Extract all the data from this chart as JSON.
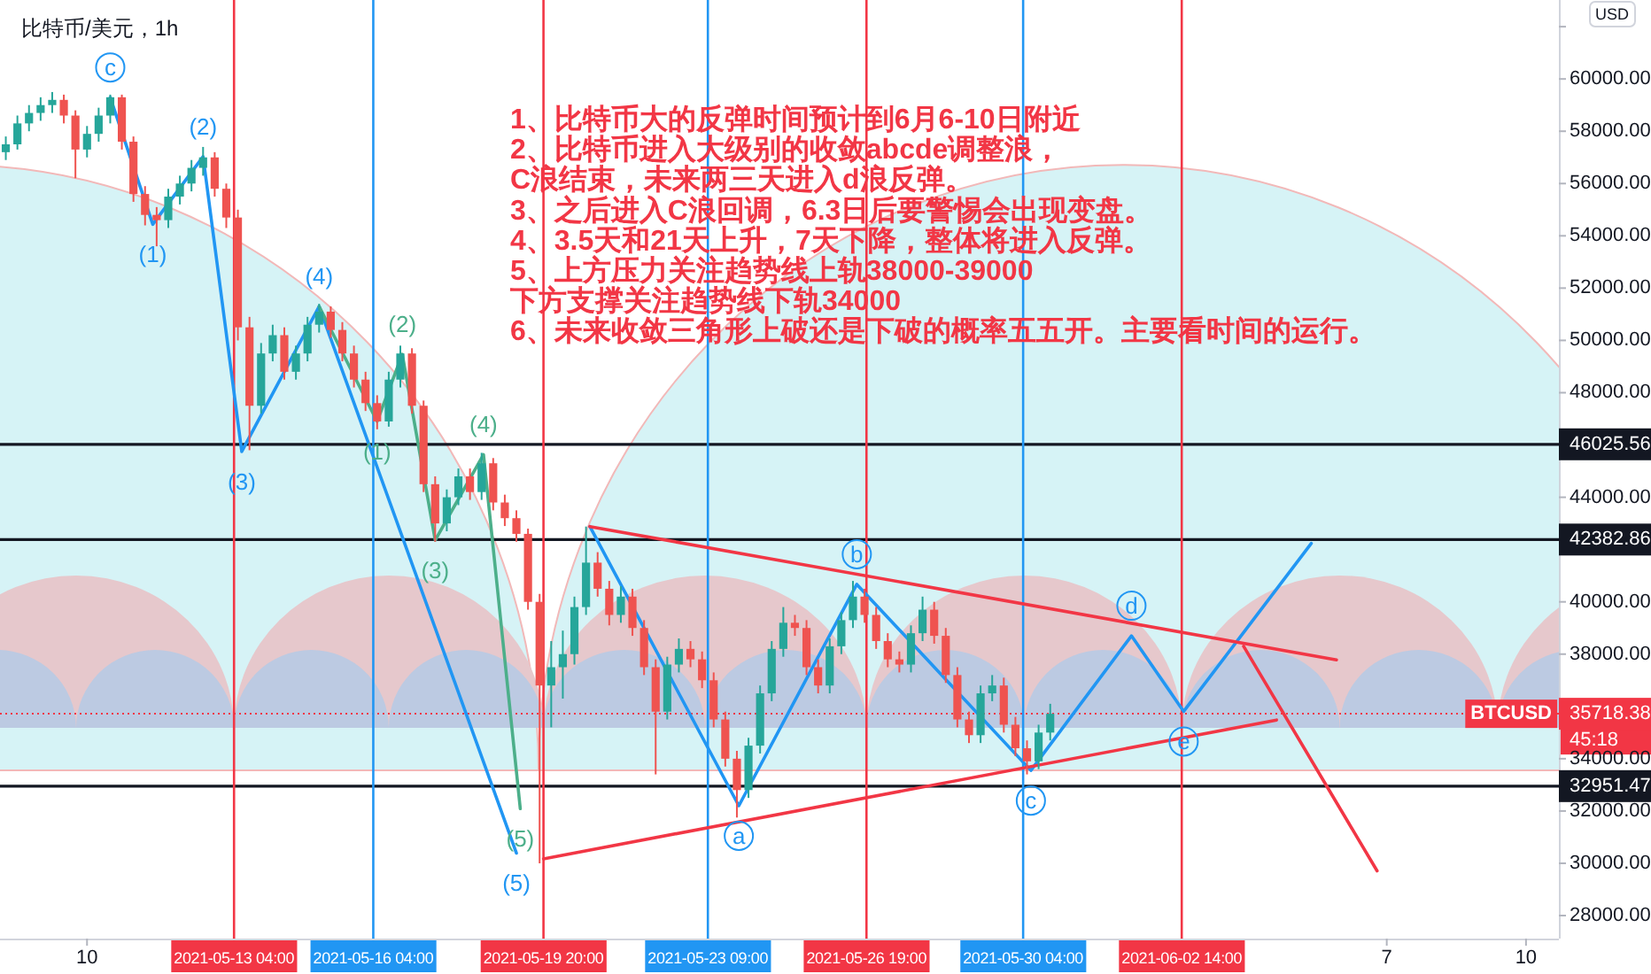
{
  "chart_data": {
    "type": "candlestick",
    "title": "比特币/美元，1h",
    "ylabel": "USD",
    "xlim": [
      "2021-05-08T03:00",
      "2021-06-10T17:00"
    ],
    "ylim": [
      27120,
      63020
    ],
    "xticks": [
      {
        "value": "2021-05-10",
        "label": "10"
      },
      {
        "value": "2021-06-07",
        "label": "7"
      },
      {
        "value": "2021-06-10",
        "label": "10"
      }
    ],
    "yticks": [
      {
        "value": 28000,
        "label": "28000.00"
      },
      {
        "value": 30000,
        "label": "30000.00"
      },
      {
        "value": 32000,
        "label": "32000.00"
      },
      {
        "value": 34000,
        "label": "34000.00"
      },
      {
        "value": 36000,
        "label": null
      },
      {
        "value": 38000,
        "label": "38000.00"
      },
      {
        "value": 40000,
        "label": "40000.00"
      },
      {
        "value": 42000,
        "label": null
      },
      {
        "value": 44000,
        "label": "44000.00"
      },
      {
        "value": 46000,
        "label": null
      },
      {
        "value": 48000,
        "label": "48000.00"
      },
      {
        "value": 50000,
        "label": "50000.00"
      },
      {
        "value": 52000,
        "label": "52000.00"
      },
      {
        "value": 54000,
        "label": "54000.00"
      },
      {
        "value": 56000,
        "label": "56000.00"
      },
      {
        "value": 58000,
        "label": "58000.00"
      },
      {
        "value": 60000,
        "label": "60000.00"
      },
      {
        "value": 62000,
        "label": null
      }
    ],
    "x": [
      "2021-05-08T06:00",
      "2021-05-08T12:00",
      "2021-05-08T18:00",
      "2021-05-09T00:00",
      "2021-05-09T06:00",
      "2021-05-09T12:00",
      "2021-05-09T18:00",
      "2021-05-10T00:00",
      "2021-05-10T06:00",
      "2021-05-10T12:00",
      "2021-05-10T18:00",
      "2021-05-11T00:00",
      "2021-05-11T06:00",
      "2021-05-11T12:00",
      "2021-05-11T18:00",
      "2021-05-12T00:00",
      "2021-05-12T06:00",
      "2021-05-12T12:00",
      "2021-05-12T18:00",
      "2021-05-13T00:00",
      "2021-05-13T06:00",
      "2021-05-13T12:00",
      "2021-05-13T18:00",
      "2021-05-14T00:00",
      "2021-05-14T06:00",
      "2021-05-14T12:00",
      "2021-05-14T18:00",
      "2021-05-15T00:00",
      "2021-05-15T06:00",
      "2021-05-15T12:00",
      "2021-05-15T18:00",
      "2021-05-16T00:00",
      "2021-05-16T06:00",
      "2021-05-16T12:00",
      "2021-05-16T18:00",
      "2021-05-17T00:00",
      "2021-05-17T06:00",
      "2021-05-17T12:00",
      "2021-05-17T18:00",
      "2021-05-18T00:00",
      "2021-05-18T06:00",
      "2021-05-18T12:00",
      "2021-05-18T18:00",
      "2021-05-19T00:00",
      "2021-05-19T06:00",
      "2021-05-19T12:00",
      "2021-05-19T18:00",
      "2021-05-20T00:00",
      "2021-05-20T06:00",
      "2021-05-20T12:00",
      "2021-05-20T18:00",
      "2021-05-21T00:00",
      "2021-05-21T06:00",
      "2021-05-21T12:00",
      "2021-05-21T18:00",
      "2021-05-22T00:00",
      "2021-05-22T06:00",
      "2021-05-22T12:00",
      "2021-05-22T18:00",
      "2021-05-23T00:00",
      "2021-05-23T06:00",
      "2021-05-23T12:00",
      "2021-05-23T18:00",
      "2021-05-24T00:00",
      "2021-05-24T06:00",
      "2021-05-24T12:00",
      "2021-05-24T18:00",
      "2021-05-25T00:00",
      "2021-05-25T06:00",
      "2021-05-25T12:00",
      "2021-05-25T18:00",
      "2021-05-26T00:00",
      "2021-05-26T06:00",
      "2021-05-26T12:00",
      "2021-05-26T18:00",
      "2021-05-27T00:00",
      "2021-05-27T06:00",
      "2021-05-27T12:00",
      "2021-05-27T18:00",
      "2021-05-28T00:00",
      "2021-05-28T06:00",
      "2021-05-28T12:00",
      "2021-05-28T18:00",
      "2021-05-29T00:00",
      "2021-05-29T06:00",
      "2021-05-29T12:00",
      "2021-05-29T18:00",
      "2021-05-30T00:00",
      "2021-05-30T06:00",
      "2021-05-30T12:00",
      "2021-05-30T18:00"
    ],
    "ohlc": [
      [
        57200,
        57800,
        56900,
        57500
      ],
      [
        57500,
        58600,
        57300,
        58300
      ],
      [
        58300,
        59000,
        58000,
        58700
      ],
      [
        58700,
        59300,
        58400,
        59000
      ],
      [
        59000,
        59500,
        58700,
        59200
      ],
      [
        59200,
        59400,
        58300,
        58600
      ],
      [
        58600,
        58800,
        56200,
        57300
      ],
      [
        57300,
        58200,
        57000,
        57900
      ],
      [
        57900,
        58900,
        57600,
        58600
      ],
      [
        58600,
        59400,
        58300,
        59300
      ],
      [
        59300,
        59400,
        57300,
        57600
      ],
      [
        57600,
        57800,
        55300,
        55600
      ],
      [
        55600,
        55900,
        54400,
        54800
      ],
      [
        54800,
        55100,
        53600,
        54600
      ],
      [
        54600,
        55800,
        54300,
        55500
      ],
      [
        55500,
        56300,
        55200,
        56000
      ],
      [
        56000,
        56900,
        55700,
        56600
      ],
      [
        56600,
        57400,
        56300,
        57000
      ],
      [
        57000,
        57200,
        55500,
        55800
      ],
      [
        55800,
        56000,
        54300,
        54700
      ],
      [
        54700,
        55000,
        50000,
        50500
      ],
      [
        50500,
        50900,
        45800,
        47500
      ],
      [
        47500,
        49900,
        47200,
        49500
      ],
      [
        49500,
        50600,
        49200,
        50200
      ],
      [
        50200,
        50500,
        48500,
        48800
      ],
      [
        48800,
        49800,
        48500,
        49500
      ],
      [
        49500,
        50900,
        49200,
        50600
      ],
      [
        50600,
        51400,
        50300,
        51100
      ],
      [
        51100,
        51300,
        50100,
        50400
      ],
      [
        50400,
        50700,
        49200,
        49500
      ],
      [
        49500,
        49800,
        48200,
        48500
      ],
      [
        48500,
        48800,
        47300,
        47600
      ],
      [
        47600,
        47900,
        46600,
        46900
      ],
      [
        46900,
        48800,
        46700,
        48500
      ],
      [
        48500,
        49800,
        48200,
        49500
      ],
      [
        49500,
        49700,
        47200,
        47500
      ],
      [
        47500,
        47700,
        44200,
        44500
      ],
      [
        44500,
        44800,
        42300,
        43000
      ],
      [
        43000,
        44300,
        42700,
        44000
      ],
      [
        44000,
        45100,
        43700,
        44800
      ],
      [
        44800,
        45100,
        43900,
        44200
      ],
      [
        44200,
        45700,
        43900,
        45300
      ],
      [
        45300,
        45500,
        43500,
        43800
      ],
      [
        43800,
        44100,
        42900,
        43200
      ],
      [
        43200,
        43500,
        42300,
        42600
      ],
      [
        42600,
        42800,
        39700,
        40000
      ],
      [
        40000,
        40300,
        30000,
        36800
      ],
      [
        36800,
        38500,
        35200,
        37500
      ],
      [
        37500,
        38900,
        36300,
        38000
      ],
      [
        38000,
        40200,
        37600,
        39800
      ],
      [
        39800,
        42880,
        39500,
        41500
      ],
      [
        41500,
        41900,
        40200,
        40500
      ],
      [
        40500,
        40800,
        39100,
        39500
      ],
      [
        39500,
        40600,
        39200,
        40200
      ],
      [
        40200,
        40500,
        38700,
        39000
      ],
      [
        39000,
        39300,
        37200,
        37500
      ],
      [
        37500,
        37800,
        33400,
        35800
      ],
      [
        35800,
        37900,
        35500,
        37600
      ],
      [
        37600,
        38600,
        37300,
        38200
      ],
      [
        38200,
        38500,
        37500,
        37800
      ],
      [
        37800,
        38100,
        36700,
        37000
      ],
      [
        37000,
        37300,
        35200,
        35500
      ],
      [
        35500,
        35800,
        33700,
        34000
      ],
      [
        34000,
        34300,
        31750,
        32800
      ],
      [
        32800,
        34800,
        32500,
        34500
      ],
      [
        34500,
        36800,
        34200,
        36500
      ],
      [
        36500,
        38500,
        36200,
        38200
      ],
      [
        38200,
        39800,
        37900,
        39200
      ],
      [
        39200,
        39500,
        38700,
        39000
      ],
      [
        39000,
        39300,
        37200,
        37500
      ],
      [
        37500,
        37800,
        36500,
        36800
      ],
      [
        36800,
        38600,
        36500,
        38300
      ],
      [
        38300,
        39600,
        38000,
        39300
      ],
      [
        39300,
        40800,
        39000,
        40200
      ],
      [
        40200,
        40500,
        39200,
        39500
      ],
      [
        39500,
        39800,
        38200,
        38500
      ],
      [
        38500,
        38800,
        37500,
        37800
      ],
      [
        37800,
        38100,
        37300,
        37600
      ],
      [
        37600,
        39100,
        37300,
        38800
      ],
      [
        38800,
        40200,
        38500,
        39700
      ],
      [
        39700,
        40000,
        38400,
        38700
      ],
      [
        38700,
        39000,
        36900,
        37200
      ],
      [
        37200,
        37500,
        35200,
        35500
      ],
      [
        35500,
        35800,
        34600,
        34900
      ],
      [
        34900,
        36800,
        34600,
        36500
      ],
      [
        36500,
        37200,
        36200,
        36800
      ],
      [
        36800,
        37100,
        35000,
        35300
      ],
      [
        35300,
        35600,
        34100,
        34400
      ],
      [
        34400,
        34700,
        33400,
        33900
      ],
      [
        33900,
        35300,
        33600,
        35000
      ],
      [
        35000,
        36100,
        34700,
        35718.38
      ]
    ],
    "series": [
      {
        "type": "line",
        "color": "#2196f3",
        "x": [
          "2021-05-10T12:00",
          "2021-05-11T10:00",
          "2021-05-12T12:00",
          "2021-05-13T08:00",
          "2021-05-15T00:00",
          "2021-05-19T06:00"
        ],
        "values": [
          59290,
          54440,
          57030,
          45750,
          51300,
          30390
        ]
      },
      {
        "type": "line",
        "color": "#4caf8a",
        "x": [
          "2021-05-15T00:00",
          "2021-05-16T06:00",
          "2021-05-16T19:00",
          "2021-05-17T12:00",
          "2021-05-18T13:00",
          "2021-05-19T08:00"
        ],
        "values": [
          51300,
          46900,
          49470,
          42360,
          45630,
          32090
        ]
      },
      {
        "type": "line",
        "color": "#2196f3",
        "x": [
          "2021-05-20T20:00",
          "2021-05-24T01:00",
          "2021-05-26T14:00",
          "2021-05-30T08:00",
          "2021-06-01T12:00",
          "2021-06-02T15:00",
          "2021-06-05T09:00"
        ],
        "values": [
          42880,
          32200,
          40670,
          33550,
          38700,
          35810,
          42240
        ]
      },
      {
        "type": "line",
        "color": "#f23645",
        "x": [
          "2021-06-03T22:00",
          "2021-06-06T19:00"
        ],
        "values": [
          38300,
          29710
        ]
      },
      {
        "type": "line",
        "color": "#f23645",
        "x": [
          "2021-05-20T20:00",
          "2021-06-05T22:00"
        ],
        "values": [
          42880,
          37780
        ]
      },
      {
        "type": "line",
        "color": "#f23645",
        "x": [
          "2021-05-19T20:00",
          "2021-06-04T15:00"
        ],
        "values": [
          30170,
          35480
        ]
      }
    ],
    "ref_lines": [
      {
        "axis": "y",
        "value": 46025.56,
        "label": "46025.56",
        "color": "#131722"
      },
      {
        "axis": "y",
        "value": 42382.86,
        "label": "42382.86",
        "color": "#131722"
      },
      {
        "axis": "y",
        "value": 32951.47,
        "label": "32951.47",
        "color": "#131722"
      },
      {
        "axis": "y",
        "value": 35718.38,
        "label": "35718.38",
        "color": "#f23645",
        "line_style": "dotted"
      },
      {
        "axis": "x",
        "value": "2021-05-13T04:00",
        "label": "2021-05-13 04:00",
        "color": "#f23645"
      },
      {
        "axis": "x",
        "value": "2021-05-16T04:00",
        "label": "2021-05-16 04:00",
        "color": "#2196f3"
      },
      {
        "axis": "x",
        "value": "2021-05-19T20:00",
        "label": "2021-05-19 20:00",
        "color": "#f23645"
      },
      {
        "axis": "x",
        "value": "2021-05-23T09:00",
        "label": "2021-05-23 09:00",
        "color": "#2196f3"
      },
      {
        "axis": "x",
        "value": "2021-05-26T19:00",
        "label": "2021-05-26 19:00",
        "color": "#f23645"
      },
      {
        "axis": "x",
        "value": "2021-05-30T04:00",
        "label": "2021-05-30 04:00",
        "color": "#2196f3"
      },
      {
        "axis": "x",
        "value": "2021-06-02T14:00",
        "label": "2021-06-02 14:00",
        "color": "#f23645"
      }
    ],
    "annotations": [
      "1、比特币大的反弹时间预计到6月6-10日附近",
      "2、比特币进入大级别的收敛abcde调整浪，",
      "C浪结束，未来两三天进入d浪反弹。",
      "3、之后进入C浪回调，6.3日后要警惕会出现变盘。",
      "4、3.5天和21天上升，7天下降，整体将进入反弹。",
      "5、上方压力关注趋势线上轨38000-39000",
      "下方支撑关注趋势线下轨34000",
      "6、未来收敛三角形上破还是下破的概率五五开。主要看时间的运行。",
      {
        "text": "c",
        "x": "2021-05-10T12:00",
        "y": 59290
      },
      {
        "text": "(1)",
        "x": "2021-05-11T10:00",
        "y": 54440
      },
      {
        "text": "(2)",
        "x": "2021-05-12T12:00",
        "y": 57030
      },
      {
        "text": "(3)",
        "x": "2021-05-13T08:00",
        "y": 45750
      },
      {
        "text": "(4)",
        "x": "2021-05-15T00:00",
        "y": 51300
      },
      {
        "text": "(5)",
        "x": "2021-05-19T06:00",
        "y": 30390
      },
      {
        "text": "(1)",
        "x": "2021-05-16T06:00",
        "y": 46900
      },
      {
        "text": "(2)",
        "x": "2021-05-16T19:00",
        "y": 49470
      },
      {
        "text": "(3)",
        "x": "2021-05-17T12:00",
        "y": 42360
      },
      {
        "text": "(4)",
        "x": "2021-05-18T13:00",
        "y": 45630
      },
      {
        "text": "(5)",
        "x": "2021-05-19T08:00",
        "y": 32090
      },
      {
        "text": "a",
        "x": "2021-05-24T01:00",
        "y": 32200
      },
      {
        "text": "b",
        "x": "2021-05-26T14:00",
        "y": 40670
      },
      {
        "text": "c",
        "x": "2021-05-30T08:00",
        "y": 33550
      },
      {
        "text": "d",
        "x": "2021-06-01T12:00",
        "y": 38700
      },
      {
        "text": "e",
        "x": "2021-06-02T15:00",
        "y": 35810
      },
      "BTCUSD",
      "45:18"
    ]
  }
}
